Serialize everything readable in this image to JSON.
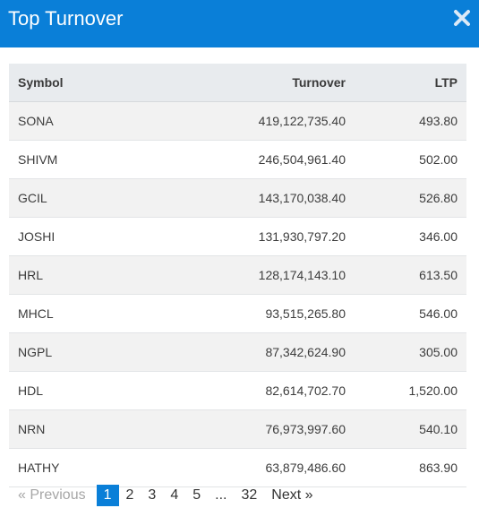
{
  "modal": {
    "title": "Top Turnover",
    "close_icon": "close-icon",
    "accent_color": "#0a7fd8"
  },
  "table": {
    "columns": [
      "Symbol",
      "Turnover",
      "LTP"
    ],
    "rows": [
      {
        "symbol": "SONA",
        "turnover": "419,122,735.40",
        "ltp": "493.80"
      },
      {
        "symbol": "SHIVM",
        "turnover": "246,504,961.40",
        "ltp": "502.00"
      },
      {
        "symbol": "GCIL",
        "turnover": "143,170,038.40",
        "ltp": "526.80"
      },
      {
        "symbol": "JOSHI",
        "turnover": "131,930,797.20",
        "ltp": "346.00"
      },
      {
        "symbol": "HRL",
        "turnover": "128,174,143.10",
        "ltp": "613.50"
      },
      {
        "symbol": "MHCL",
        "turnover": "93,515,265.80",
        "ltp": "546.00"
      },
      {
        "symbol": "NGPL",
        "turnover": "87,342,624.90",
        "ltp": "305.00"
      },
      {
        "symbol": "HDL",
        "turnover": "82,614,702.70",
        "ltp": "1,520.00"
      },
      {
        "symbol": "NRN",
        "turnover": "76,973,997.60",
        "ltp": "540.10"
      },
      {
        "symbol": "HATHY",
        "turnover": "63,879,486.60",
        "ltp": "863.90"
      }
    ]
  },
  "pagination": {
    "prev": "« Previous",
    "pages": [
      "1",
      "2",
      "3",
      "4",
      "5",
      "...",
      "32"
    ],
    "active": "1",
    "next": "Next »"
  }
}
